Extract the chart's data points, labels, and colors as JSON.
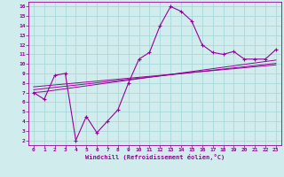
{
  "x": [
    0,
    1,
    2,
    3,
    4,
    5,
    6,
    7,
    8,
    9,
    10,
    11,
    12,
    13,
    14,
    15,
    16,
    17,
    18,
    19,
    20,
    21,
    22,
    23
  ],
  "y_main": [
    7.0,
    6.3,
    8.8,
    9.0,
    2.0,
    4.5,
    2.8,
    4.0,
    5.2,
    8.0,
    10.5,
    11.2,
    14.0,
    16.0,
    15.5,
    14.5,
    12.0,
    11.2,
    11.0,
    11.3,
    10.5,
    10.5,
    10.5,
    11.5
  ],
  "y_line1": [
    7.0,
    7.1,
    7.25,
    7.4,
    7.55,
    7.7,
    7.85,
    8.0,
    8.15,
    8.3,
    8.45,
    8.6,
    8.75,
    8.9,
    9.05,
    9.2,
    9.35,
    9.5,
    9.65,
    9.8,
    9.95,
    10.1,
    10.25,
    10.4
  ],
  "y_line2": [
    7.3,
    7.42,
    7.54,
    7.66,
    7.78,
    7.9,
    8.02,
    8.14,
    8.26,
    8.38,
    8.5,
    8.62,
    8.74,
    8.86,
    8.98,
    9.1,
    9.22,
    9.34,
    9.46,
    9.58,
    9.7,
    9.82,
    9.94,
    10.06
  ],
  "y_line3": [
    7.6,
    7.7,
    7.8,
    7.9,
    8.0,
    8.1,
    8.2,
    8.3,
    8.4,
    8.5,
    8.6,
    8.7,
    8.8,
    8.9,
    9.0,
    9.1,
    9.2,
    9.3,
    9.4,
    9.5,
    9.6,
    9.7,
    9.8,
    9.9
  ],
  "line_color": "#990099",
  "bg_color": "#d0ecec",
  "grid_color": "#a8d8d8",
  "xlabel": "Windchill (Refroidissement éolien,°C)",
  "ylim": [
    1.5,
    16.5
  ],
  "xlim": [
    -0.5,
    23.5
  ],
  "yticks": [
    2,
    3,
    4,
    5,
    6,
    7,
    8,
    9,
    10,
    11,
    12,
    13,
    14,
    15,
    16
  ],
  "xticks": [
    0,
    1,
    2,
    3,
    4,
    5,
    6,
    7,
    8,
    9,
    10,
    11,
    12,
    13,
    14,
    15,
    16,
    17,
    18,
    19,
    20,
    21,
    22,
    23
  ],
  "marker": "+"
}
